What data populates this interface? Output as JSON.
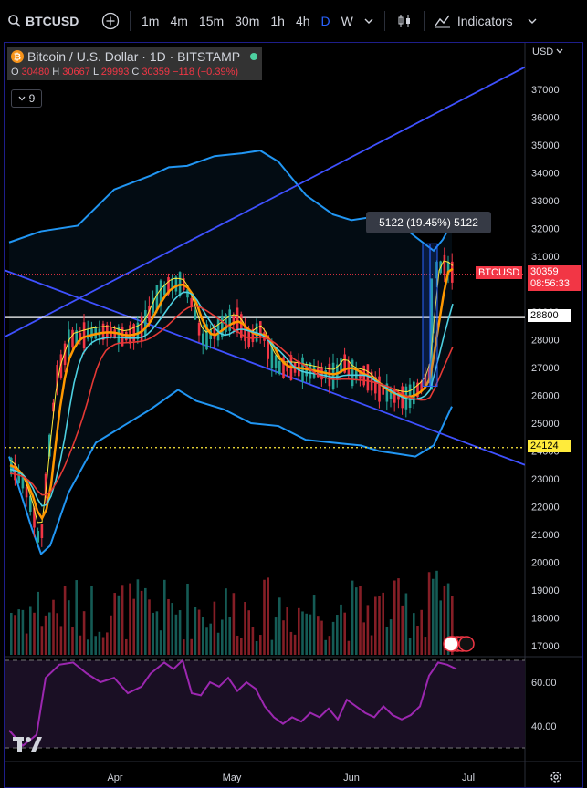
{
  "toolbar": {
    "symbol": "BTCUSD",
    "timeframes": [
      "1m",
      "4m",
      "15m",
      "30m",
      "1h",
      "4h",
      "D",
      "W"
    ],
    "active_timeframe": "D",
    "indicators_label": "Indicators"
  },
  "legend": {
    "title": "Bitcoin / U.S. Dollar · 1D · BITSTAMP",
    "o_label": "O",
    "o": "30480",
    "h_label": "H",
    "h": "30667",
    "l_label": "L",
    "l": "29993",
    "c_label": "C",
    "c": "30359",
    "change": "−118 (−0.39%)",
    "indicator_count": "9"
  },
  "price_axis": {
    "currency": "USD",
    "ticks": [
      "37000",
      "36000",
      "35000",
      "34000",
      "33000",
      "32000",
      "31000",
      "30000",
      "29000",
      "28000",
      "27000",
      "26000",
      "25000",
      "24000",
      "23000",
      "22000",
      "21000",
      "20000",
      "19000",
      "18000",
      "17000"
    ],
    "symbol_tag": "BTCUSD",
    "last_price": "30359",
    "countdown": "08:56:33",
    "line_tag": "28800",
    "dotted_tag": "24124"
  },
  "measure_tooltip": "5122 (19.45%) 5122",
  "rsi_axis": {
    "ticks": [
      "60.00",
      "40.00"
    ]
  },
  "time_axis": {
    "labels": [
      "Apr",
      "May",
      "Jun",
      "Jul"
    ]
  },
  "colors": {
    "up": "#26a69a",
    "down": "#f23645",
    "bands": "#2196f3",
    "trend": "#3f51ff",
    "rsi": "#9c27b0",
    "ema_orange": "#ff9800",
    "ema_yellow": "#ffeb3b",
    "ema_teal": "#4dd0e1",
    "ema_red": "#e53935"
  },
  "chart_data": {
    "type": "candlestick",
    "ylim": [
      16700,
      37700
    ],
    "bb_upper": [
      [
        5,
        31500
      ],
      [
        40,
        31900
      ],
      [
        80,
        32100
      ],
      [
        120,
        33400
      ],
      [
        160,
        33900
      ],
      [
        180,
        34200
      ],
      [
        200,
        34250
      ],
      [
        230,
        34600
      ],
      [
        260,
        34700
      ],
      [
        280,
        34800
      ],
      [
        300,
        34400
      ],
      [
        330,
        33200
      ],
      [
        360,
        32500
      ],
      [
        380,
        32300
      ],
      [
        420,
        32500
      ],
      [
        450,
        31700
      ],
      [
        470,
        31200
      ],
      [
        480,
        31600
      ],
      [
        490,
        32200
      ]
    ],
    "bb_lower": [
      [
        5,
        23800
      ],
      [
        30,
        21200
      ],
      [
        40,
        20300
      ],
      [
        50,
        20600
      ],
      [
        70,
        22500
      ],
      [
        100,
        24300
      ],
      [
        130,
        24900
      ],
      [
        160,
        25500
      ],
      [
        190,
        26200
      ],
      [
        210,
        25800
      ],
      [
        240,
        25500
      ],
      [
        270,
        25000
      ],
      [
        300,
        24900
      ],
      [
        330,
        24400
      ],
      [
        360,
        24300
      ],
      [
        390,
        24200
      ],
      [
        410,
        24000
      ],
      [
        430,
        23900
      ],
      [
        450,
        23800
      ],
      [
        470,
        24200
      ],
      [
        490,
        25600
      ]
    ],
    "rsi_ylim": [
      30,
      70
    ],
    "rsi": [
      [
        5,
        38
      ],
      [
        20,
        31
      ],
      [
        35,
        36
      ],
      [
        45,
        62
      ],
      [
        60,
        68
      ],
      [
        75,
        69
      ],
      [
        90,
        64
      ],
      [
        105,
        60
      ],
      [
        120,
        62
      ],
      [
        135,
        55
      ],
      [
        150,
        58
      ],
      [
        160,
        64
      ],
      [
        175,
        69
      ],
      [
        185,
        66
      ],
      [
        195,
        70
      ],
      [
        205,
        55
      ],
      [
        215,
        54
      ],
      [
        225,
        60
      ],
      [
        235,
        58
      ],
      [
        245,
        62
      ],
      [
        255,
        56
      ],
      [
        265,
        60
      ],
      [
        275,
        57
      ],
      [
        285,
        49
      ],
      [
        295,
        44
      ],
      [
        305,
        41
      ],
      [
        315,
        44
      ],
      [
        325,
        42
      ],
      [
        335,
        46
      ],
      [
        345,
        44
      ],
      [
        355,
        48
      ],
      [
        365,
        43
      ],
      [
        375,
        52
      ],
      [
        385,
        49
      ],
      [
        395,
        46
      ],
      [
        405,
        44
      ],
      [
        415,
        49
      ],
      [
        425,
        45
      ],
      [
        435,
        43
      ],
      [
        445,
        45
      ],
      [
        455,
        49
      ],
      [
        465,
        63
      ],
      [
        475,
        69
      ],
      [
        485,
        68
      ],
      [
        495,
        66
      ]
    ]
  }
}
